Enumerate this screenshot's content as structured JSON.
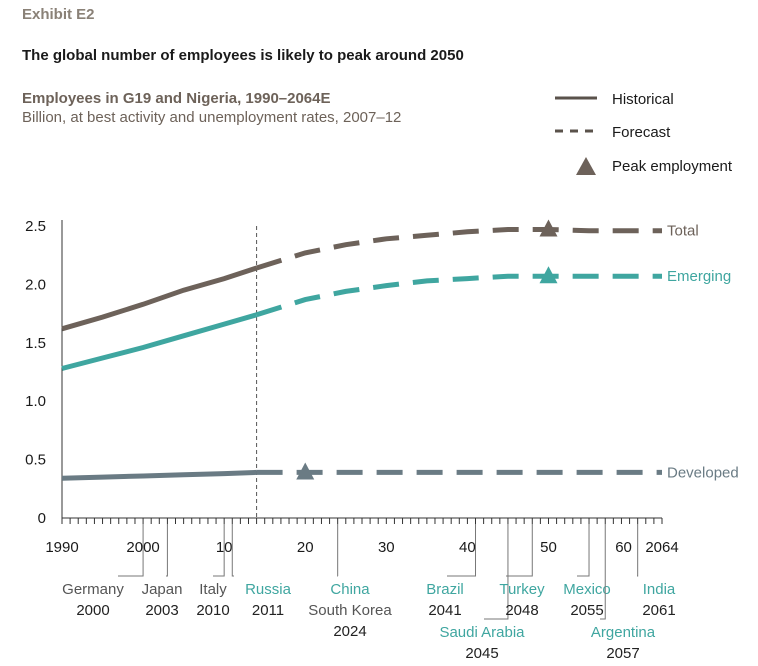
{
  "exhibit_label": "Exhibit E2",
  "headline": "The global number of employees is likely to peak around 2050",
  "colors": {
    "total": "#6d625a",
    "emerging": "#3fa6a0",
    "developed": "#6a7b84",
    "marker_dark": "#6d625a",
    "marker_teal": "#3fa6a0",
    "marker_gray": "#6a7b84",
    "axis": "#333333",
    "note_gray": "#555555",
    "note_teal": "#3fa6a0",
    "year_black": "#222222"
  },
  "chart_data": {
    "type": "line",
    "title": "Employees in G19 and Nigeria, 1990–2064E",
    "subtitle": "Billion, at best activity and unemployment rates, 2007–12",
    "xlim": [
      1990,
      2064
    ],
    "ylim": [
      0,
      2.5
    ],
    "forecast_start": 2014,
    "yticks": [
      0,
      0.5,
      1.0,
      1.5,
      2.0,
      2.5
    ],
    "ytick_labels": [
      "0",
      "0.5",
      "1.0",
      "1.5",
      "2.0",
      "2.5"
    ],
    "xticks": [
      1990,
      2000,
      2010,
      2020,
      2030,
      2040,
      2050,
      2060,
      2064
    ],
    "xtick_labels": [
      "1990",
      "2000",
      "10",
      "20",
      "30",
      "40",
      "50",
      "60",
      "2064"
    ],
    "legend": {
      "historical": "Historical",
      "forecast": "Forecast",
      "peak": "Peak employment"
    },
    "series": [
      {
        "name": "Total",
        "key": "total",
        "x": [
          1990,
          1995,
          2000,
          2005,
          2010,
          2014,
          2020,
          2025,
          2030,
          2035,
          2040,
          2045,
          2050,
          2055,
          2060,
          2064
        ],
        "values": [
          1.62,
          1.72,
          1.83,
          1.95,
          2.05,
          2.14,
          2.27,
          2.34,
          2.39,
          2.42,
          2.45,
          2.47,
          2.47,
          2.46,
          2.46,
          2.46
        ],
        "peak": {
          "x": 2050,
          "y": 2.47
        }
      },
      {
        "name": "Emerging",
        "key": "emerging",
        "x": [
          1990,
          1995,
          2000,
          2005,
          2010,
          2014,
          2020,
          2025,
          2030,
          2035,
          2040,
          2045,
          2050,
          2055,
          2060,
          2064
        ],
        "values": [
          1.28,
          1.37,
          1.46,
          1.56,
          1.66,
          1.74,
          1.87,
          1.94,
          1.99,
          2.03,
          2.05,
          2.07,
          2.07,
          2.07,
          2.07,
          2.07
        ],
        "peak": {
          "x": 2050,
          "y": 2.07
        }
      },
      {
        "name": "Developed",
        "key": "developed",
        "x": [
          1990,
          1995,
          2000,
          2005,
          2010,
          2014,
          2020,
          2030,
          2040,
          2050,
          2060,
          2064
        ],
        "values": [
          0.34,
          0.35,
          0.36,
          0.37,
          0.38,
          0.39,
          0.39,
          0.39,
          0.39,
          0.39,
          0.39,
          0.39
        ],
        "peak": {
          "x": 2020,
          "y": 0.39
        }
      }
    ],
    "annotations": [
      {
        "year": 2000,
        "names": [
          "Germany"
        ],
        "value": "2000",
        "color": "gray",
        "dx": 0,
        "row": 0
      },
      {
        "year": 2003,
        "names": [
          "Japan"
        ],
        "value": "2003",
        "color": "gray",
        "dx": 0,
        "row": 0
      },
      {
        "year": 2010,
        "names": [
          "Italy"
        ],
        "value": "2010",
        "color": "gray",
        "dx": 0,
        "row": 0
      },
      {
        "year": 2011,
        "names": [
          "Russia"
        ],
        "value": "2011",
        "color": "teal",
        "dx": 0,
        "row": 0
      },
      {
        "year": 2024,
        "names": [
          "China",
          "South Korea"
        ],
        "value": "2024",
        "color": "teal-gray",
        "dx": 0,
        "row": 0
      },
      {
        "year": 2041,
        "names": [
          "Brazil"
        ],
        "value": "2041",
        "color": "teal",
        "dx": 0,
        "row": 0
      },
      {
        "year": 2045,
        "names": [
          "Saudi Arabia"
        ],
        "value": "2045",
        "color": "teal",
        "dx": 0,
        "row": 1
      },
      {
        "year": 2048,
        "names": [
          "Turkey"
        ],
        "value": "2048",
        "color": "teal",
        "dx": 0,
        "row": 0
      },
      {
        "year": 2055,
        "names": [
          "Mexico"
        ],
        "value": "2055",
        "color": "teal",
        "dx": 0,
        "row": 0
      },
      {
        "year": 2057,
        "names": [
          "Argentina"
        ],
        "value": "2057",
        "color": "teal",
        "dx": 0,
        "row": 1
      },
      {
        "year": 2061,
        "names": [
          "India"
        ],
        "value": "2061",
        "color": "teal",
        "dx": 0,
        "row": 0
      }
    ]
  }
}
